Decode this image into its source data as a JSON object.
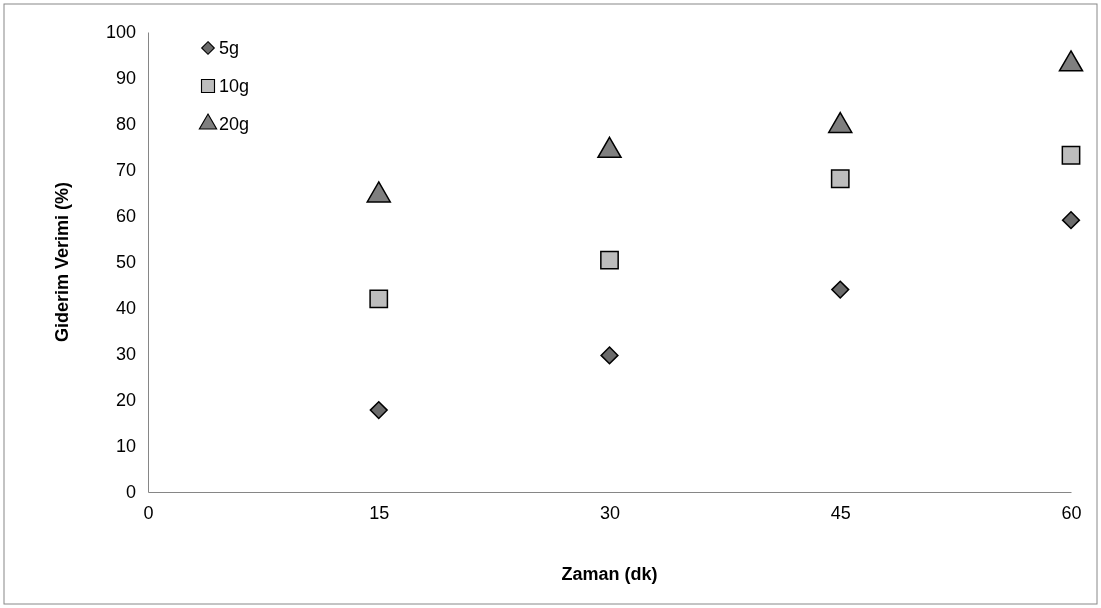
{
  "chart_data": {
    "type": "scatter",
    "xlabel": "Zaman (dk)",
    "ylabel": "Giderim Verimi (%)",
    "x": [
      15,
      30,
      45,
      60
    ],
    "xlim": [
      0,
      60
    ],
    "xticks": [
      0,
      15,
      30,
      45,
      60
    ],
    "ylim": [
      0,
      100
    ],
    "yticks": [
      0,
      10,
      20,
      30,
      40,
      50,
      60,
      70,
      80,
      90,
      100
    ],
    "grid": false,
    "legend": "top left",
    "series": [
      {
        "name": "5g",
        "color": "#6b6b6b",
        "marker": "diamond",
        "values": [
          17.8,
          29.7,
          44,
          59.1
        ]
      },
      {
        "name": "10g",
        "color": "#bdbdbd",
        "marker": "square",
        "values": [
          42,
          50.4,
          68.1,
          73.2
        ]
      },
      {
        "name": "20g",
        "color": "#7f7f7f",
        "marker": "triangle",
        "values": [
          64.5,
          74.2,
          79.6,
          93
        ]
      }
    ]
  }
}
